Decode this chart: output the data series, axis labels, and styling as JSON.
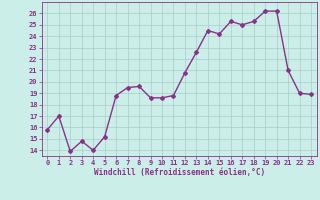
{
  "x": [
    0,
    1,
    2,
    3,
    4,
    5,
    6,
    7,
    8,
    9,
    10,
    11,
    12,
    13,
    14,
    15,
    16,
    17,
    18,
    19,
    20,
    21,
    22,
    23
  ],
  "y": [
    15.8,
    17.0,
    13.9,
    14.8,
    14.0,
    15.2,
    18.8,
    19.5,
    19.6,
    18.6,
    18.6,
    18.8,
    20.8,
    22.6,
    24.5,
    24.2,
    25.3,
    25.0,
    25.3,
    26.2,
    26.2,
    21.0,
    19.0,
    18.9
  ],
  "line_color": "#883388",
  "marker": "D",
  "marker_size": 2.0,
  "line_width": 1.0,
  "bg_color": "#cceee8",
  "grid_color": "#aaccc8",
  "xlabel": "Windchill (Refroidissement éolien,°C)",
  "xlabel_color": "#883388",
  "tick_color": "#883388",
  "ylim": [
    13.5,
    27.0
  ],
  "yticks": [
    14,
    15,
    16,
    17,
    18,
    19,
    20,
    21,
    22,
    23,
    24,
    25,
    26
  ],
  "xlim": [
    -0.5,
    23.5
  ],
  "xticks": [
    0,
    1,
    2,
    3,
    4,
    5,
    6,
    7,
    8,
    9,
    10,
    11,
    12,
    13,
    14,
    15,
    16,
    17,
    18,
    19,
    20,
    21,
    22,
    23
  ],
  "tick_fontsize": 5.0,
  "xlabel_fontsize": 5.5
}
